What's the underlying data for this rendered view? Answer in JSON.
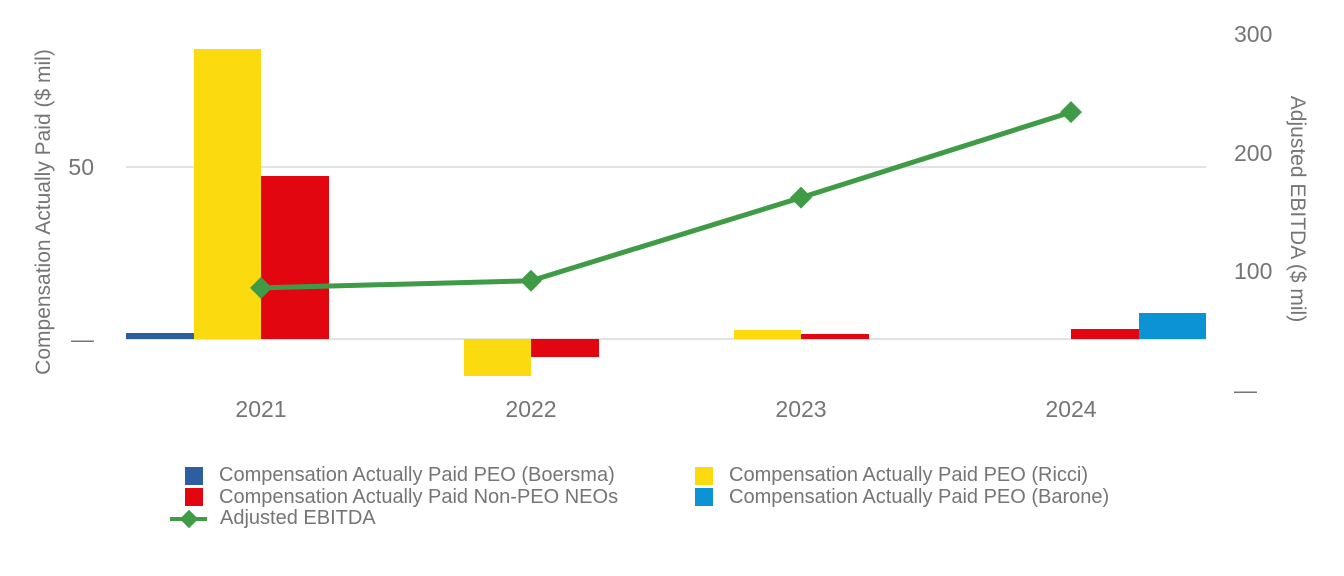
{
  "chart_data": {
    "type": "bar+line",
    "categories": [
      "2021",
      "2022",
      "2023",
      "2024"
    ],
    "bar_series": [
      {
        "name": "Compensation Actually Paid PEO (Boersma)",
        "color": "#2D5F9E",
        "values": [
          1.7,
          0,
          0,
          0
        ]
      },
      {
        "name": "Compensation Actually Paid PEO (Ricci)",
        "color": "#FBDB0F",
        "values": [
          84.5,
          -11,
          2.5,
          0
        ]
      },
      {
        "name": "Compensation Actually Paid Non-PEO NEOs",
        "color": "#E20611",
        "values": [
          47.5,
          -5.3,
          1.5,
          2.8
        ]
      },
      {
        "name": "Compensation Actually Paid PEO (Barone)",
        "color": "#0C93D3",
        "values": [
          0,
          0,
          0,
          7.4
        ]
      }
    ],
    "line_series": {
      "name": "Adjusted EBITDA",
      "color": "#3F9B46",
      "marker": "diamond",
      "values": [
        86,
        92,
        162,
        234
      ]
    },
    "left_axis": {
      "title": "Compensation Actually Paid ($ mil)",
      "min": -15,
      "max": 96,
      "ticks": [
        {
          "value": 50,
          "label": "50"
        },
        {
          "value": 0,
          "label": "—"
        }
      ]
    },
    "right_axis": {
      "title": "Adjusted EBITDA ($ mil)",
      "min": 0,
      "max": 320,
      "ticks": [
        {
          "value": 300,
          "label": "300"
        },
        {
          "value": 200,
          "label": "200"
        },
        {
          "value": 100,
          "label": "100"
        },
        {
          "value": 0,
          "label": "—"
        }
      ]
    },
    "gridline_values": [
      50,
      0
    ],
    "grid": "horizontal-only",
    "legend_position": "bottom"
  },
  "style": {
    "text_color": "#757575",
    "gridline_color": "#E3E3E3",
    "background": "#FFFFFF"
  }
}
